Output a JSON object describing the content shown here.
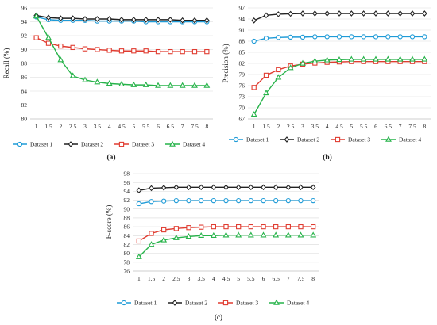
{
  "chart_data": [
    {
      "type": "line",
      "panel_label": "(a)",
      "ylabel": "Recall (%)",
      "ylim": [
        80,
        96
      ],
      "yticks": [
        "80",
        "82",
        "84",
        "86",
        "88",
        "90",
        "92",
        "94",
        "96"
      ],
      "x": [
        "1",
        "1.5",
        "2",
        "2.5",
        "3",
        "3.5",
        "4",
        "4.5",
        "5",
        "5.5",
        "6",
        "6.5",
        "7",
        "7.5",
        "8"
      ],
      "grid": "horizontal",
      "legend": "bottom",
      "series": [
        {
          "name": "Dataset 1",
          "color": "#1f9bd7",
          "marker": "circle",
          "values": [
            94.7,
            94.3,
            94.2,
            94.2,
            94.2,
            94.1,
            94.1,
            94.1,
            94.1,
            94.0,
            94.0,
            94.0,
            94.0,
            94.0,
            94.0
          ]
        },
        {
          "name": "Dataset 2",
          "color": "#222222",
          "marker": "diamond",
          "values": [
            94.9,
            94.6,
            94.5,
            94.5,
            94.4,
            94.4,
            94.4,
            94.3,
            94.3,
            94.3,
            94.3,
            94.3,
            94.2,
            94.2,
            94.2
          ]
        },
        {
          "name": "Dataset 3",
          "color": "#e03c31",
          "marker": "square",
          "values": [
            91.7,
            90.9,
            90.5,
            90.3,
            90.1,
            90.0,
            89.9,
            89.8,
            89.8,
            89.8,
            89.7,
            89.7,
            89.7,
            89.7,
            89.7
          ]
        },
        {
          "name": "Dataset 4",
          "color": "#27b34a",
          "marker": "triangle",
          "values": [
            94.8,
            91.7,
            88.5,
            86.2,
            85.6,
            85.3,
            85.1,
            85.0,
            84.9,
            84.9,
            84.8,
            84.8,
            84.8,
            84.8,
            84.8
          ]
        }
      ]
    },
    {
      "type": "line",
      "panel_label": "(b)",
      "ylabel": "Precision (%)",
      "ylim": [
        67,
        97
      ],
      "yticks": [
        "67",
        "70",
        "73",
        "76",
        "79",
        "82",
        "85",
        "88",
        "91",
        "94",
        "97"
      ],
      "x": [
        "1",
        "1.5",
        "2",
        "2.5",
        "3",
        "3.5",
        "4",
        "4.5",
        "5",
        "5.5",
        "6",
        "6.5",
        "7",
        "7.5",
        "8"
      ],
      "grid": "horizontal",
      "legend": "bottom",
      "series": [
        {
          "name": "Dataset 1",
          "color": "#1f9bd7",
          "marker": "circle",
          "values": [
            88.0,
            88.8,
            89.0,
            89.1,
            89.1,
            89.2,
            89.2,
            89.2,
            89.2,
            89.2,
            89.2,
            89.2,
            89.2,
            89.2,
            89.2
          ]
        },
        {
          "name": "Dataset 2",
          "color": "#222222",
          "marker": "diamond",
          "values": [
            93.6,
            95.0,
            95.3,
            95.4,
            95.5,
            95.5,
            95.5,
            95.5,
            95.5,
            95.5,
            95.5,
            95.5,
            95.5,
            95.5,
            95.5
          ]
        },
        {
          "name": "Dataset 3",
          "color": "#e03c31",
          "marker": "square",
          "values": [
            75.5,
            78.8,
            80.3,
            81.3,
            81.8,
            82.1,
            82.3,
            82.4,
            82.5,
            82.5,
            82.5,
            82.5,
            82.5,
            82.5,
            82.5
          ]
        },
        {
          "name": "Dataset 4",
          "color": "#27b34a",
          "marker": "triangle",
          "values": [
            68.2,
            74.0,
            78.2,
            80.8,
            82.0,
            82.6,
            82.9,
            83.0,
            83.1,
            83.1,
            83.1,
            83.1,
            83.1,
            83.1,
            83.1
          ]
        }
      ]
    },
    {
      "type": "line",
      "panel_label": "(c)",
      "ylabel": "F-score (%)",
      "ylim": [
        76,
        98
      ],
      "yticks": [
        "76",
        "78",
        "80",
        "82",
        "84",
        "86",
        "88",
        "90",
        "92",
        "94",
        "96",
        "98"
      ],
      "x": [
        "1",
        "1.5",
        "2",
        "2.5",
        "3",
        "3.5",
        "4",
        "4.5",
        "5",
        "5.5",
        "6",
        "6.5",
        "7",
        "7.5",
        "8"
      ],
      "grid": "horizontal",
      "legend": "bottom",
      "series": [
        {
          "name": "Dataset 1",
          "color": "#1f9bd7",
          "marker": "circle",
          "values": [
            91.2,
            91.7,
            91.8,
            91.9,
            91.9,
            91.9,
            91.9,
            91.9,
            91.9,
            91.9,
            91.9,
            91.9,
            91.9,
            91.9,
            91.9
          ]
        },
        {
          "name": "Dataset 2",
          "color": "#222222",
          "marker": "diamond",
          "values": [
            94.2,
            94.7,
            94.8,
            94.9,
            94.9,
            94.9,
            94.9,
            94.9,
            94.9,
            94.9,
            94.9,
            94.9,
            94.9,
            94.9,
            94.9
          ]
        },
        {
          "name": "Dataset 3",
          "color": "#e03c31",
          "marker": "square",
          "values": [
            82.8,
            84.5,
            85.3,
            85.6,
            85.8,
            85.9,
            86.0,
            86.0,
            86.0,
            86.0,
            86.0,
            86.0,
            86.0,
            86.0,
            86.0
          ]
        },
        {
          "name": "Dataset 4",
          "color": "#27b34a",
          "marker": "triangle",
          "values": [
            79.2,
            82.0,
            83.0,
            83.5,
            83.8,
            84.0,
            84.0,
            84.1,
            84.1,
            84.1,
            84.1,
            84.1,
            84.1,
            84.1,
            84.1
          ]
        }
      ]
    }
  ]
}
